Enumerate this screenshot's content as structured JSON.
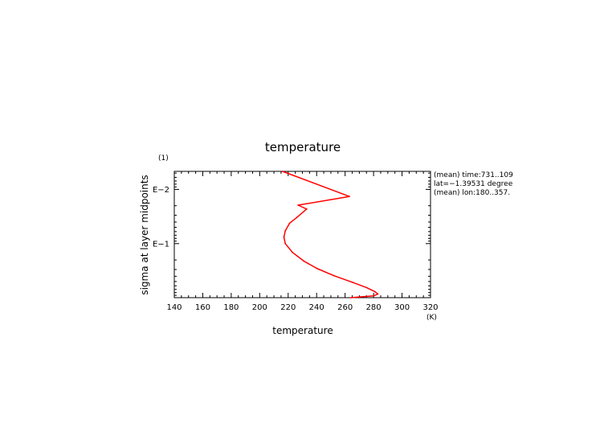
{
  "chart_data": {
    "type": "line",
    "title": "temperature",
    "xlabel": "temperature",
    "ylabel": "sigma at layer midpoints",
    "x_units": "(K)",
    "y_units": "(1)",
    "xlim": [
      140,
      320
    ],
    "x_ticks": [
      140,
      160,
      180,
      200,
      220,
      240,
      260,
      280,
      300,
      320
    ],
    "y_scale": "log",
    "y_reversed": true,
    "ylim": [
      0.00465,
      0.993
    ],
    "y_ticks": [
      {
        "value": 0.01,
        "label": "E−2"
      },
      {
        "value": 0.1,
        "label": "E−1"
      }
    ],
    "annotations": [
      "(mean) time:731..109",
      "lat=−1.39531 degree",
      "(mean) lon:180..357."
    ],
    "series": [
      {
        "color": "#ff0000",
        "points": [
          {
            "x": 216,
            "y": 0.00465
          },
          {
            "x": 263,
            "y": 0.0135
          },
          {
            "x": 227,
            "y": 0.0195
          },
          {
            "x": 233,
            "y": 0.023
          },
          {
            "x": 226,
            "y": 0.033
          },
          {
            "x": 221,
            "y": 0.042
          },
          {
            "x": 218,
            "y": 0.058
          },
          {
            "x": 217,
            "y": 0.076
          },
          {
            "x": 218,
            "y": 0.1
          },
          {
            "x": 223,
            "y": 0.145
          },
          {
            "x": 231,
            "y": 0.21
          },
          {
            "x": 240,
            "y": 0.285
          },
          {
            "x": 252,
            "y": 0.39
          },
          {
            "x": 265,
            "y": 0.515
          },
          {
            "x": 275,
            "y": 0.645
          },
          {
            "x": 281,
            "y": 0.77
          },
          {
            "x": 283,
            "y": 0.85
          },
          {
            "x": 280,
            "y": 0.92
          },
          {
            "x": 271,
            "y": 0.96
          },
          {
            "x": 264,
            "y": 0.993
          }
        ]
      }
    ]
  }
}
